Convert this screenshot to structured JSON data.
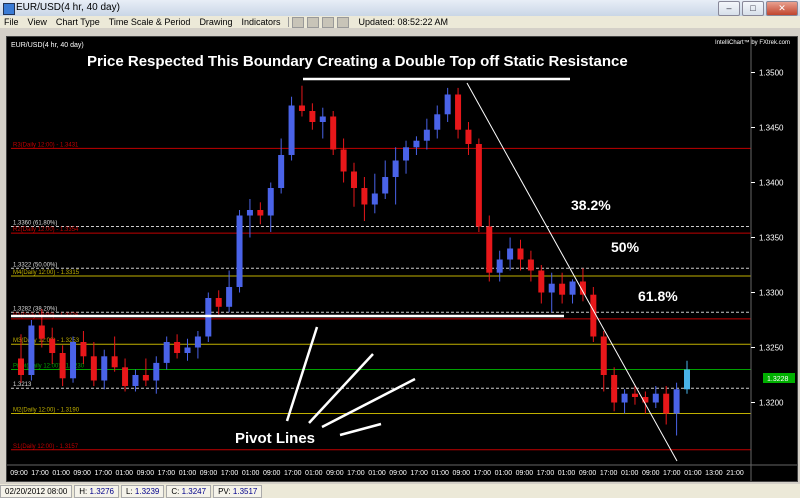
{
  "window": {
    "title": "EUR/USD(4 hr,  40 day)"
  },
  "menu": {
    "items": [
      "File",
      "View",
      "Chart Type",
      "Time Scale & Period",
      "Drawing",
      "Indicators"
    ],
    "updated": "Updated: 08:52:22 AM"
  },
  "chart": {
    "symbol_label": "EUR/USD(4 hr,  40 day)",
    "branding": "IntelliChart™ by FXtrek.com",
    "annotation_title": "Price Respected This Boundary Creating a Double Top off Static Resistance",
    "pivot_caption": "Pivot Lines",
    "fib_pct_labels": [
      "38.2%",
      "50%",
      "61.8%"
    ],
    "current_price": "1.3228",
    "x_tick_labels": [
      "09:00",
      "17:00",
      "01:00",
      "09:00",
      "17:00",
      "01:00",
      "09:00",
      "17:00",
      "01:00",
      "09:00",
      "17:00",
      "01:00",
      "09:00",
      "17:00",
      "01:00",
      "09:00",
      "17:00",
      "01:00",
      "09:00",
      "17:00",
      "01:00",
      "09:00",
      "17:00",
      "01:00",
      "09:00",
      "17:00",
      "01:00",
      "09:00",
      "17:00",
      "01:00",
      "09:00",
      "17:00",
      "01:00",
      "13:00",
      "21:00"
    ],
    "colors": {
      "up": "#4a63e8",
      "down": "#e8171a",
      "last_up": "#49b3e8",
      "axis": "#ffffff"
    }
  },
  "chart_data": {
    "type": "candlestick",
    "title": "Price Respected This Boundary Creating a Double Top off Static Resistance",
    "yticks": [
      "1.3500",
      "1.3450",
      "1.3400",
      "1.3350",
      "1.3300",
      "1.3250",
      "1.3200"
    ],
    "ylim": [
      1.3145,
      1.3525
    ],
    "levels": [
      {
        "label": "R3(Daily 12:00) - 1.3431",
        "value": 1.3431,
        "color": "#c00000",
        "style": "solid"
      },
      {
        "label": "1.3360 (61.80%)",
        "value": 1.336,
        "color": "#cccccc",
        "style": "dashed"
      },
      {
        "label": "R2(Daily 12:00) - 1.3354",
        "value": 1.3354,
        "color": "#c00000",
        "style": "solid"
      },
      {
        "label": "1.3322 (50.00%)",
        "value": 1.3322,
        "color": "#cccccc",
        "style": "dashed"
      },
      {
        "label": "M4(Daily 12:00) - 1.3315",
        "value": 1.3315,
        "color": "#c0b000",
        "style": "solid"
      },
      {
        "label": "1.3282 (38.20%)",
        "value": 1.3282,
        "color": "#cccccc",
        "style": "dashed"
      },
      {
        "label": "R1(Daily 12:00) - 1.3276",
        "value": 1.3276,
        "color": "#c00000",
        "style": "solid"
      },
      {
        "label": "M3(Daily 12:00) - 1.3253",
        "value": 1.3253,
        "color": "#c0b000",
        "style": "solid"
      },
      {
        "label": "Pivot(Daily 12:00) - 1.3230",
        "value": 1.323,
        "color": "#00a000",
        "style": "solid"
      },
      {
        "label": "1.3213",
        "value": 1.3213,
        "color": "#cccccc",
        "style": "dashed"
      },
      {
        "label": "M2(Daily 12:00) - 1.3190",
        "value": 1.319,
        "color": "#c0b000",
        "style": "solid"
      },
      {
        "label": "S1(Daily 12:00) - 1.3157",
        "value": 1.3157,
        "color": "#c00000",
        "style": "solid"
      }
    ],
    "candles": [
      [
        1.324,
        1.3262,
        1.3218,
        1.3225
      ],
      [
        1.3225,
        1.3275,
        1.322,
        1.327
      ],
      [
        1.327,
        1.3285,
        1.325,
        1.3258
      ],
      [
        1.3258,
        1.3268,
        1.3235,
        1.3245
      ],
      [
        1.3245,
        1.3252,
        1.3215,
        1.3222
      ],
      [
        1.3222,
        1.326,
        1.3218,
        1.3255
      ],
      [
        1.3255,
        1.3265,
        1.3235,
        1.3242
      ],
      [
        1.3242,
        1.3255,
        1.3215,
        1.322
      ],
      [
        1.322,
        1.3248,
        1.3212,
        1.3242
      ],
      [
        1.3242,
        1.326,
        1.3228,
        1.3232
      ],
      [
        1.3232,
        1.324,
        1.321,
        1.3215
      ],
      [
        1.3215,
        1.323,
        1.321,
        1.3225
      ],
      [
        1.3225,
        1.324,
        1.3215,
        1.322
      ],
      [
        1.322,
        1.3242,
        1.3208,
        1.3236
      ],
      [
        1.3236,
        1.326,
        1.323,
        1.3255
      ],
      [
        1.3255,
        1.3262,
        1.324,
        1.3245
      ],
      [
        1.3245,
        1.3258,
        1.3238,
        1.325
      ],
      [
        1.325,
        1.3265,
        1.324,
        1.326
      ],
      [
        1.326,
        1.33,
        1.3255,
        1.3295
      ],
      [
        1.3295,
        1.3302,
        1.328,
        1.3287
      ],
      [
        1.3287,
        1.332,
        1.3282,
        1.3305
      ],
      [
        1.3305,
        1.3375,
        1.33,
        1.337
      ],
      [
        1.337,
        1.3385,
        1.335,
        1.3375
      ],
      [
        1.3375,
        1.3382,
        1.3362,
        1.337
      ],
      [
        1.337,
        1.34,
        1.3355,
        1.3395
      ],
      [
        1.3395,
        1.344,
        1.339,
        1.3425
      ],
      [
        1.3425,
        1.3478,
        1.342,
        1.347
      ],
      [
        1.347,
        1.3488,
        1.346,
        1.3465
      ],
      [
        1.3465,
        1.3472,
        1.3448,
        1.3455
      ],
      [
        1.3455,
        1.3468,
        1.344,
        1.346
      ],
      [
        1.346,
        1.3465,
        1.3425,
        1.343
      ],
      [
        1.343,
        1.344,
        1.34,
        1.341
      ],
      [
        1.341,
        1.3418,
        1.3378,
        1.3395
      ],
      [
        1.3395,
        1.3405,
        1.3365,
        1.338
      ],
      [
        1.338,
        1.3408,
        1.3372,
        1.339
      ],
      [
        1.339,
        1.342,
        1.3385,
        1.3405
      ],
      [
        1.3405,
        1.3432,
        1.338,
        1.342
      ],
      [
        1.342,
        1.3438,
        1.3408,
        1.3432
      ],
      [
        1.3432,
        1.3442,
        1.3425,
        1.3438
      ],
      [
        1.3438,
        1.3458,
        1.343,
        1.3448
      ],
      [
        1.3448,
        1.347,
        1.344,
        1.3462
      ],
      [
        1.3462,
        1.3486,
        1.3455,
        1.348
      ],
      [
        1.348,
        1.3486,
        1.344,
        1.3448
      ],
      [
        1.3448,
        1.3455,
        1.3425,
        1.3435
      ],
      [
        1.3435,
        1.344,
        1.3355,
        1.336
      ],
      [
        1.336,
        1.337,
        1.331,
        1.3318
      ],
      [
        1.3318,
        1.3338,
        1.331,
        1.333
      ],
      [
        1.333,
        1.335,
        1.332,
        1.334
      ],
      [
        1.334,
        1.3348,
        1.332,
        1.333
      ],
      [
        1.333,
        1.3338,
        1.331,
        1.332
      ],
      [
        1.332,
        1.3325,
        1.329,
        1.33
      ],
      [
        1.33,
        1.3318,
        1.3282,
        1.3308
      ],
      [
        1.3308,
        1.3318,
        1.329,
        1.3298
      ],
      [
        1.3298,
        1.3312,
        1.329,
        1.331
      ],
      [
        1.331,
        1.3322,
        1.3292,
        1.3298
      ],
      [
        1.3298,
        1.3305,
        1.3255,
        1.326
      ],
      [
        1.326,
        1.3265,
        1.321,
        1.3225
      ],
      [
        1.3225,
        1.3232,
        1.3192,
        1.32
      ],
      [
        1.32,
        1.3212,
        1.319,
        1.3208
      ],
      [
        1.3208,
        1.3215,
        1.3198,
        1.3205
      ],
      [
        1.3205,
        1.321,
        1.319,
        1.32
      ],
      [
        1.32,
        1.3215,
        1.3195,
        1.3208
      ],
      [
        1.3208,
        1.3215,
        1.318,
        1.319
      ],
      [
        1.319,
        1.3218,
        1.317,
        1.3212
      ],
      [
        1.3212,
        1.3238,
        1.3208,
        1.323
      ]
    ],
    "markers": {
      "current_price": 1.3228
    }
  },
  "status": {
    "date": "02/20/2012 08:00",
    "items": [
      {
        "label": "H:",
        "value": "1.3276"
      },
      {
        "label": "L:",
        "value": "1.3239"
      },
      {
        "label": "C:",
        "value": "1.3247"
      },
      {
        "label": "PV:",
        "value": "1.3517"
      }
    ]
  }
}
